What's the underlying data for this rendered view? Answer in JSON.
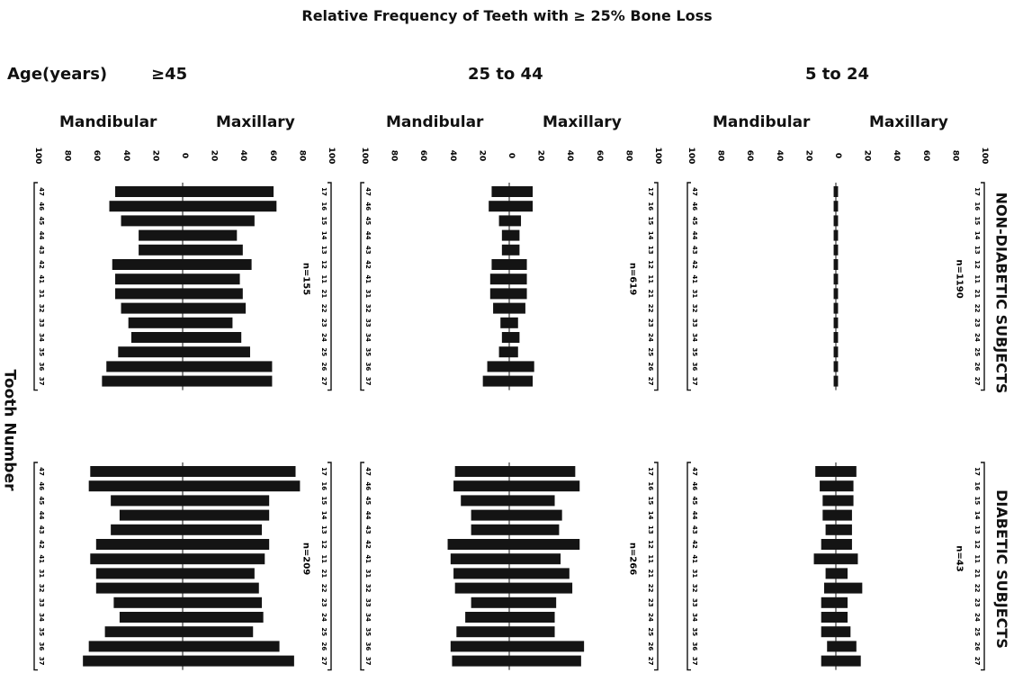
{
  "chart_data": {
    "type": "bar",
    "title": "Relative Frequency of Teeth with ≥ 25% Bone Loss",
    "age_axis_label": "Age(years)",
    "ylabel": "Tooth Number",
    "side_labels": [
      "Mandibular",
      "Maxillary"
    ],
    "scale_ticks": [
      "100",
      "80",
      "60",
      "40",
      "20",
      "0",
      "20",
      "40",
      "60",
      "80",
      "100"
    ],
    "ylim": [
      -100,
      100
    ],
    "age_groups": [
      "≥45",
      "25 to 44",
      "5 to 24"
    ],
    "subject_groups": [
      "NON-DIABETIC SUBJECTS",
      "DIABETIC SUBJECTS"
    ],
    "mandibular_teeth": [
      "47",
      "46",
      "45",
      "44",
      "43",
      "42",
      "41",
      "31",
      "32",
      "33",
      "34",
      "35",
      "36",
      "37"
    ],
    "maxillary_teeth": [
      "17",
      "16",
      "15",
      "14",
      "13",
      "12",
      "11",
      "21",
      "22",
      "23",
      "24",
      "25",
      "26",
      "27"
    ],
    "panels": [
      {
        "subject_group": "NON-DIABETIC SUBJECTS",
        "age_group": "≥45",
        "n_label": "n=155",
        "mandibular": [
          46,
          50,
          42,
          30,
          30,
          48,
          46,
          46,
          42,
          37,
          35,
          44,
          52,
          55
        ],
        "maxillary": [
          62,
          64,
          49,
          37,
          41,
          47,
          39,
          41,
          43,
          34,
          40,
          46,
          61,
          61
        ]
      },
      {
        "subject_group": "NON-DIABETIC SUBJECTS",
        "age_group": "25 to 44",
        "n_label": "n=619",
        "mandibular": [
          12,
          14,
          7,
          5,
          5,
          12,
          13,
          13,
          11,
          6,
          5,
          7,
          15,
          18
        ],
        "maxillary": [
          16,
          16,
          8,
          7,
          7,
          12,
          12,
          12,
          11,
          6,
          7,
          6,
          17,
          16
        ]
      },
      {
        "subject_group": "NON-DIABETIC SUBJECTS",
        "age_group": "5 to 24",
        "n_label": "n=1190",
        "mandibular": [
          1.5,
          1.5,
          1.5,
          1.5,
          1.5,
          1.5,
          1.5,
          1.5,
          1.5,
          1.5,
          1.5,
          1.5,
          1.5,
          1.5
        ],
        "maxillary": [
          1.5,
          1.5,
          1.5,
          1.5,
          1.5,
          1.5,
          1.5,
          1.5,
          1.5,
          1.5,
          1.5,
          1.5,
          1.5,
          1.5
        ]
      },
      {
        "subject_group": "DIABETIC SUBJECTS",
        "age_group": "≥45",
        "n_label": "n=209",
        "mandibular": [
          63,
          64,
          49,
          43,
          49,
          59,
          63,
          59,
          59,
          47,
          43,
          53,
          64,
          68
        ],
        "maxillary": [
          77,
          80,
          59,
          59,
          54,
          59,
          56,
          49,
          52,
          54,
          55,
          48,
          66,
          76
        ]
      },
      {
        "subject_group": "DIABETIC SUBJECTS",
        "age_group": "25 to 44",
        "n_label": "n=266",
        "mandibular": [
          37,
          38,
          33,
          26,
          26,
          42,
          40,
          38,
          37,
          26,
          30,
          36,
          40,
          39
        ],
        "maxillary": [
          45,
          48,
          31,
          36,
          34,
          48,
          35,
          41,
          43,
          32,
          31,
          31,
          51,
          49
        ]
      },
      {
        "subject_group": "DIABETIC SUBJECTS",
        "age_group": "5 to 24",
        "n_label": "n=43",
        "mandibular": [
          14,
          11,
          9,
          9,
          7,
          10,
          15,
          7,
          8,
          10,
          10,
          10,
          6,
          10
        ],
        "maxillary": [
          14,
          12,
          12,
          11,
          11,
          11,
          15,
          8,
          18,
          8,
          8,
          10,
          14,
          17
        ]
      }
    ]
  }
}
